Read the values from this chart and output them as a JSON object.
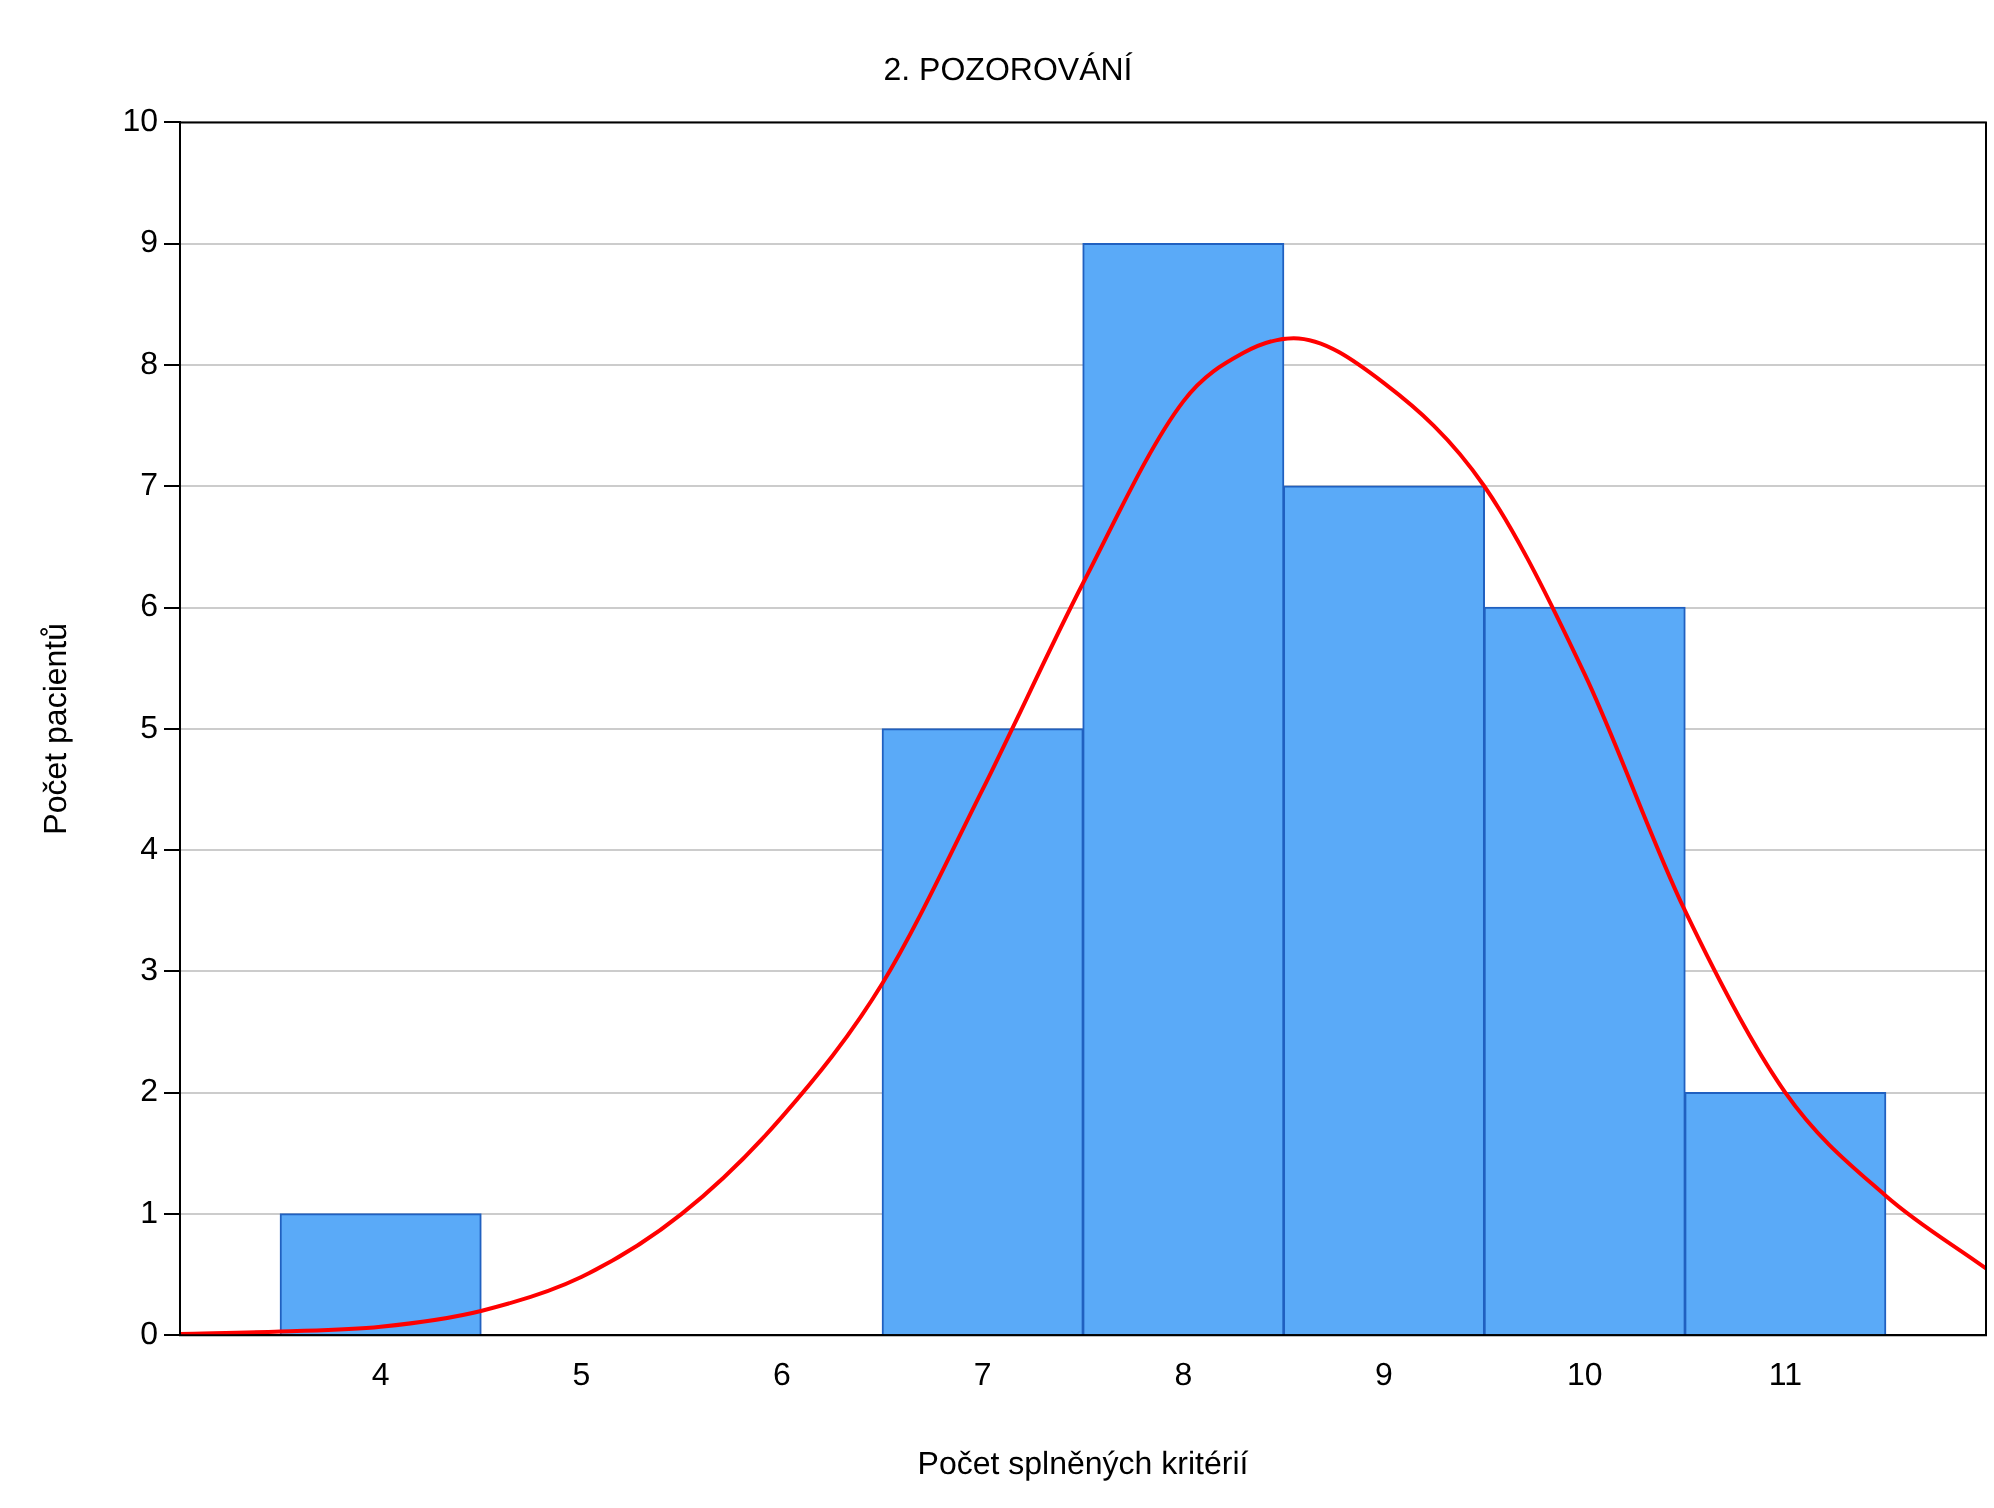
{
  "chart_data": {
    "type": "histogram",
    "title": "2. POZOROVÁNÍ",
    "xlabel": "Počet splněných kritérií",
    "ylabel": "Počet pacientů",
    "bins": [
      3.5,
      4.5,
      5.5,
      6.5,
      7.5,
      8.5,
      9.5,
      10.5,
      11.5
    ],
    "values": [
      1,
      0,
      0,
      5,
      9,
      7,
      6,
      2
    ],
    "color": "#5aaaf8",
    "series": [
      {
        "type": "line",
        "color": "#ff0000",
        "x": [
          3,
          3.5,
          4,
          4.5,
          5,
          5.5,
          6,
          6.5,
          7,
          7.5,
          8,
          8.3,
          8.55,
          9,
          9.5,
          10,
          10.5,
          11,
          11.5,
          12
        ],
        "values": [
          0.01,
          0.03,
          0.07,
          0.2,
          0.48,
          1.0,
          1.8,
          2.9,
          4.5,
          6.2,
          7.7,
          8.1,
          8.22,
          7.85,
          7.0,
          5.45,
          3.5,
          2.0,
          1.15,
          0.55
        ]
      }
    ],
    "xlim": [
      3,
      12
    ],
    "xticks": [
      4,
      5,
      6,
      7,
      8,
      9,
      10,
      11
    ],
    "ylim": [
      0,
      10
    ],
    "yticks": [
      0,
      1,
      2,
      3,
      4,
      5,
      6,
      7,
      8,
      9,
      10
    ],
    "grid": "y",
    "legend": false,
    "marker": "none",
    "line_style": "solid"
  }
}
